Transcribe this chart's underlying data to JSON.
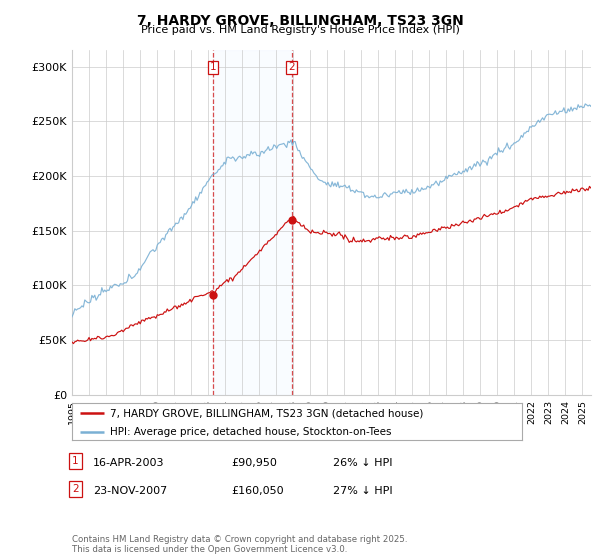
{
  "title": "7, HARDY GROVE, BILLINGHAM, TS23 3GN",
  "subtitle": "Price paid vs. HM Land Registry's House Price Index (HPI)",
  "ylabel_ticks": [
    "£0",
    "£50K",
    "£100K",
    "£150K",
    "£200K",
    "£250K",
    "£300K"
  ],
  "ytick_values": [
    0,
    50000,
    100000,
    150000,
    200000,
    250000,
    300000
  ],
  "ylim": [
    0,
    315000
  ],
  "xlim_start": 1995.0,
  "xlim_end": 2025.5,
  "hpi_color": "#7ab0d4",
  "property_color": "#cc1111",
  "shade_color": "#ddeeff",
  "vline_color": "#cc1111",
  "marker1_date": 2003.29,
  "marker2_date": 2007.9,
  "marker1_hpi": 90950,
  "marker2_hpi": 160050,
  "legend_property": "7, HARDY GROVE, BILLINGHAM, TS23 3GN (detached house)",
  "legend_hpi": "HPI: Average price, detached house, Stockton-on-Tees",
  "footer": "Contains HM Land Registry data © Crown copyright and database right 2025.\nThis data is licensed under the Open Government Licence v3.0.",
  "background_color": "#ffffff",
  "plot_bg_color": "#ffffff",
  "grid_color": "#cccccc",
  "title_fontsize": 10,
  "subtitle_fontsize": 8
}
